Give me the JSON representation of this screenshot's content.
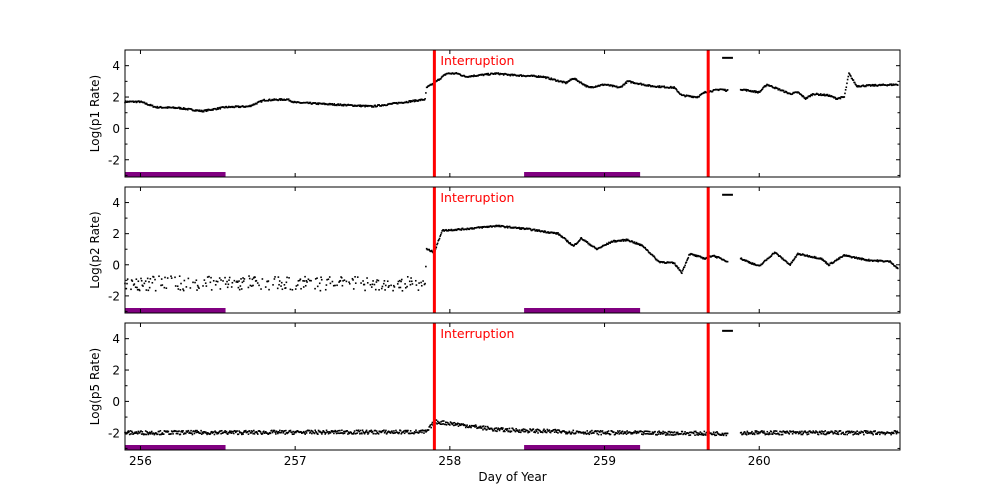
{
  "chart_data": {
    "type": "scatter",
    "xlabel": "Day of Year",
    "xlim": [
      255.9,
      260.91
    ],
    "xticks": [
      256,
      257,
      258,
      259,
      260
    ],
    "xtick_labels": [
      "256",
      "257",
      "258",
      "259",
      "260"
    ],
    "interruption_label": "Interruption",
    "interruption_color": "#ff0000",
    "interruptions": [
      257.9,
      259.67
    ],
    "shaded_bars": [
      [
        255.9,
        256.55
      ],
      [
        258.48,
        259.23
      ]
    ],
    "shaded_bar_color": "#800080",
    "marker_segment": {
      "x": [
        259.76,
        259.83
      ],
      "y": 4.5
    },
    "grid": false,
    "panels": [
      {
        "ylabel": "Log(p1 Rate)",
        "ylim": [
          -3.1,
          5
        ],
        "yticks": [
          -2,
          0,
          2,
          4
        ],
        "ytick_labels": [
          "-2",
          "0",
          "2",
          "4"
        ],
        "points": [
          [
            255.9,
            1.7
          ],
          [
            256.0,
            1.7
          ],
          [
            256.1,
            1.35
          ],
          [
            256.25,
            1.3
          ],
          [
            256.4,
            1.1
          ],
          [
            256.55,
            1.35
          ],
          [
            256.7,
            1.4
          ],
          [
            256.8,
            1.8
          ],
          [
            256.95,
            1.85
          ],
          [
            257.0,
            1.65
          ],
          [
            257.3,
            1.5
          ],
          [
            257.5,
            1.4
          ],
          [
            257.84,
            1.85
          ],
          [
            257.85,
            2.6
          ],
          [
            257.9,
            2.9
          ],
          [
            257.98,
            3.5
          ],
          [
            258.05,
            3.5
          ],
          [
            258.1,
            3.3
          ],
          [
            258.3,
            3.5
          ],
          [
            258.4,
            3.4
          ],
          [
            258.6,
            3.3
          ],
          [
            258.75,
            2.9
          ],
          [
            258.8,
            3.2
          ],
          [
            258.9,
            2.6
          ],
          [
            259.0,
            2.8
          ],
          [
            259.1,
            2.6
          ],
          [
            259.15,
            3.0
          ],
          [
            259.3,
            2.7
          ],
          [
            259.45,
            2.6
          ],
          [
            259.5,
            2.1
          ],
          [
            259.6,
            2.0
          ],
          [
            259.65,
            2.3
          ],
          [
            259.75,
            2.5
          ],
          [
            259.8,
            2.4
          ],
          [
            null,
            null
          ],
          [
            259.88,
            2.5
          ],
          [
            260.0,
            2.3
          ],
          [
            260.05,
            2.8
          ],
          [
            260.2,
            2.2
          ],
          [
            260.25,
            2.3
          ],
          [
            260.3,
            1.9
          ],
          [
            260.35,
            2.2
          ],
          [
            260.45,
            2.1
          ],
          [
            260.5,
            1.9
          ],
          [
            260.55,
            2.0
          ],
          [
            260.58,
            3.5
          ],
          [
            260.63,
            2.7
          ],
          [
            260.9,
            2.8
          ]
        ]
      },
      {
        "ylabel": "Log(p2 Rate)",
        "ylim": [
          -3.1,
          5
        ],
        "yticks": [
          -2,
          0,
          2,
          4
        ],
        "ytick_labels": [
          "-2",
          "0",
          "2",
          "4"
        ],
        "points": [
          [
            255.9,
            -1.2
          ],
          [
            257.84,
            -1.2
          ],
          [
            257.85,
            1.0
          ],
          [
            257.9,
            0.8
          ],
          [
            257.95,
            2.2
          ],
          [
            258.1,
            2.3
          ],
          [
            258.3,
            2.5
          ],
          [
            258.5,
            2.3
          ],
          [
            258.7,
            2.0
          ],
          [
            258.8,
            1.2
          ],
          [
            258.85,
            1.7
          ],
          [
            258.95,
            1.0
          ],
          [
            259.05,
            1.5
          ],
          [
            259.15,
            1.6
          ],
          [
            259.25,
            1.2
          ],
          [
            259.35,
            0.2
          ],
          [
            259.45,
            0.1
          ],
          [
            259.5,
            -0.5
          ],
          [
            259.55,
            0.7
          ],
          [
            259.65,
            0.4
          ],
          [
            259.7,
            0.6
          ],
          [
            259.8,
            0.2
          ],
          [
            null,
            null
          ],
          [
            259.88,
            0.4
          ],
          [
            260.0,
            -0.1
          ],
          [
            260.1,
            0.8
          ],
          [
            260.2,
            0.0
          ],
          [
            260.25,
            0.7
          ],
          [
            260.4,
            0.4
          ],
          [
            260.45,
            0.0
          ],
          [
            260.55,
            0.6
          ],
          [
            260.7,
            0.3
          ],
          [
            260.85,
            0.2
          ],
          [
            260.9,
            -0.3
          ]
        ]
      },
      {
        "ylabel": "Log(p5 Rate)",
        "ylim": [
          -3.1,
          5
        ],
        "yticks": [
          -2,
          0,
          2,
          4
        ],
        "ytick_labels": [
          "-2",
          "0",
          "2",
          "4"
        ],
        "points": [
          [
            255.9,
            -2.0
          ],
          [
            257.85,
            -1.95
          ],
          [
            257.9,
            -1.3
          ],
          [
            258.0,
            -1.4
          ],
          [
            258.3,
            -1.8
          ],
          [
            258.6,
            -1.9
          ],
          [
            259.0,
            -2.0
          ],
          [
            259.8,
            -2.05
          ],
          [
            null,
            null
          ],
          [
            259.88,
            -2.0
          ],
          [
            260.9,
            -2.0
          ]
        ]
      }
    ]
  }
}
